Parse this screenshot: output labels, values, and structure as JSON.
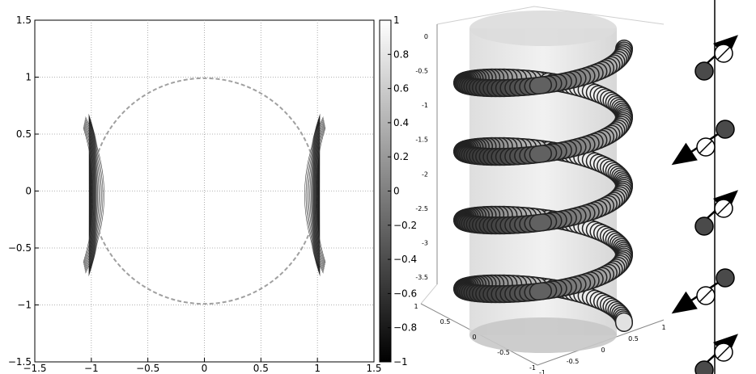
{
  "chart_data": [
    {
      "type": "heatmap",
      "title": "",
      "xlabel": "",
      "ylabel": "",
      "xlim": [
        -1.5,
        1.5
      ],
      "ylim": [
        -1.5,
        1.5
      ],
      "grid": true,
      "xticks": [
        -1.5,
        -1,
        -0.5,
        0,
        0.5,
        1,
        1.5
      ],
      "yticks": [
        -1.5,
        -1,
        -0.5,
        0,
        0.5,
        1,
        1.5
      ],
      "xtick_labels": [
        "−1.5",
        "−1",
        "−0.5",
        "0",
        "0.5",
        "1",
        "1.5"
      ],
      "ytick_labels": [
        "−1.5",
        "−1",
        "−0.5",
        "0",
        "0.5",
        "1",
        "1.5"
      ],
      "unit_circle_radius": 1,
      "colorbar": {
        "range": [
          -1,
          1
        ],
        "ticks": [
          1,
          0.8,
          0.6,
          0.4,
          0.2,
          0,
          -0.2,
          -0.4,
          -0.6,
          -0.8,
          -1
        ],
        "tick_labels": [
          "1",
          "0.8",
          "0.6",
          "0.4",
          "0.2",
          "0",
          "−0.2",
          "−0.4",
          "−0.6",
          "−0.8",
          "−1"
        ],
        "colormap": "gray"
      },
      "features": [
        {
          "name": "left-crescent",
          "center": [
            -0.98,
            0.0
          ],
          "extent_y": [
            -0.75,
            0.68
          ],
          "min_value": -1,
          "max_value": 0.8
        },
        {
          "name": "right-crescent",
          "center": [
            0.98,
            0.0
          ],
          "extent_y": [
            -0.75,
            0.68
          ],
          "min_value": -1,
          "max_value": 0.8
        }
      ]
    },
    {
      "type": "other",
      "description_kind": "3d-helix",
      "zticks": [
        0,
        -0.5,
        -1,
        -1.5,
        -2,
        -2.5,
        -3,
        -3.5
      ],
      "ztick_labels": [
        "0",
        "-0.5",
        "-1",
        "-1.5",
        "-2",
        "-2.5",
        "-3",
        "-3.5"
      ],
      "xticks_labels": [
        "1",
        "0.5",
        "0",
        "-0.5",
        "-1"
      ],
      "yticks_labels": [
        "1",
        "0.5",
        "0",
        "-0.5",
        "-1"
      ],
      "turns": 4,
      "radius": 1,
      "grid": true
    },
    {
      "type": "other",
      "description_kind": "spin-chain-diagram",
      "sites": [
        {
          "arrow": "up-right",
          "dark_ball": "lower-left"
        },
        {
          "arrow": "down-left",
          "dark_ball": "upper-right"
        },
        {
          "arrow": "up-right",
          "dark_ball": "lower-left"
        },
        {
          "arrow": "down-left",
          "dark_ball": "upper-right"
        },
        {
          "arrow": "up-right",
          "dark_ball": "lower-left"
        }
      ]
    }
  ],
  "colors": {
    "dark": "#4a4a4a",
    "axis": "#000000",
    "grid": "#9a9a9a",
    "circle": "#a0a0a0"
  }
}
